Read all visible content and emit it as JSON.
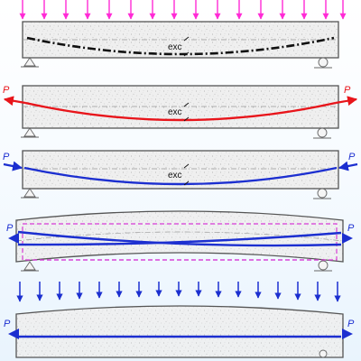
{
  "diagram": {
    "panels": [
      {
        "id": "applied-load",
        "tendon_color": "#111111",
        "tendon_style": "dash-dot",
        "label": "exc",
        "force_label": ""
      },
      {
        "id": "tendon-tension",
        "tendon_color": "#e8151b",
        "tendon_style": "solid",
        "label": "exc",
        "force_label": "P"
      },
      {
        "id": "prestress-force",
        "tendon_color": "#1c2fd0",
        "tendon_style": "solid",
        "label": "exc",
        "force_label": "P"
      },
      {
        "id": "camber",
        "tendon_color": "#1c2fd0",
        "tendon_style": "solid",
        "label": "",
        "force_label": "P"
      },
      {
        "id": "loaded-balanced",
        "tendon_color": "#1c2fd0",
        "tendon_style": "solid",
        "label": "",
        "force_label": "P"
      }
    ],
    "colors": {
      "load_arrow_top": "#ff2bd6",
      "load_arrow_bottom": "#1c2fd0",
      "prestress_arrow": "#1c2fd0",
      "tension_arrow": "#e8151b",
      "deformed_outline": "#d63fd6",
      "beam_fill": "#ededed",
      "beam_edge": "#555555"
    }
  }
}
